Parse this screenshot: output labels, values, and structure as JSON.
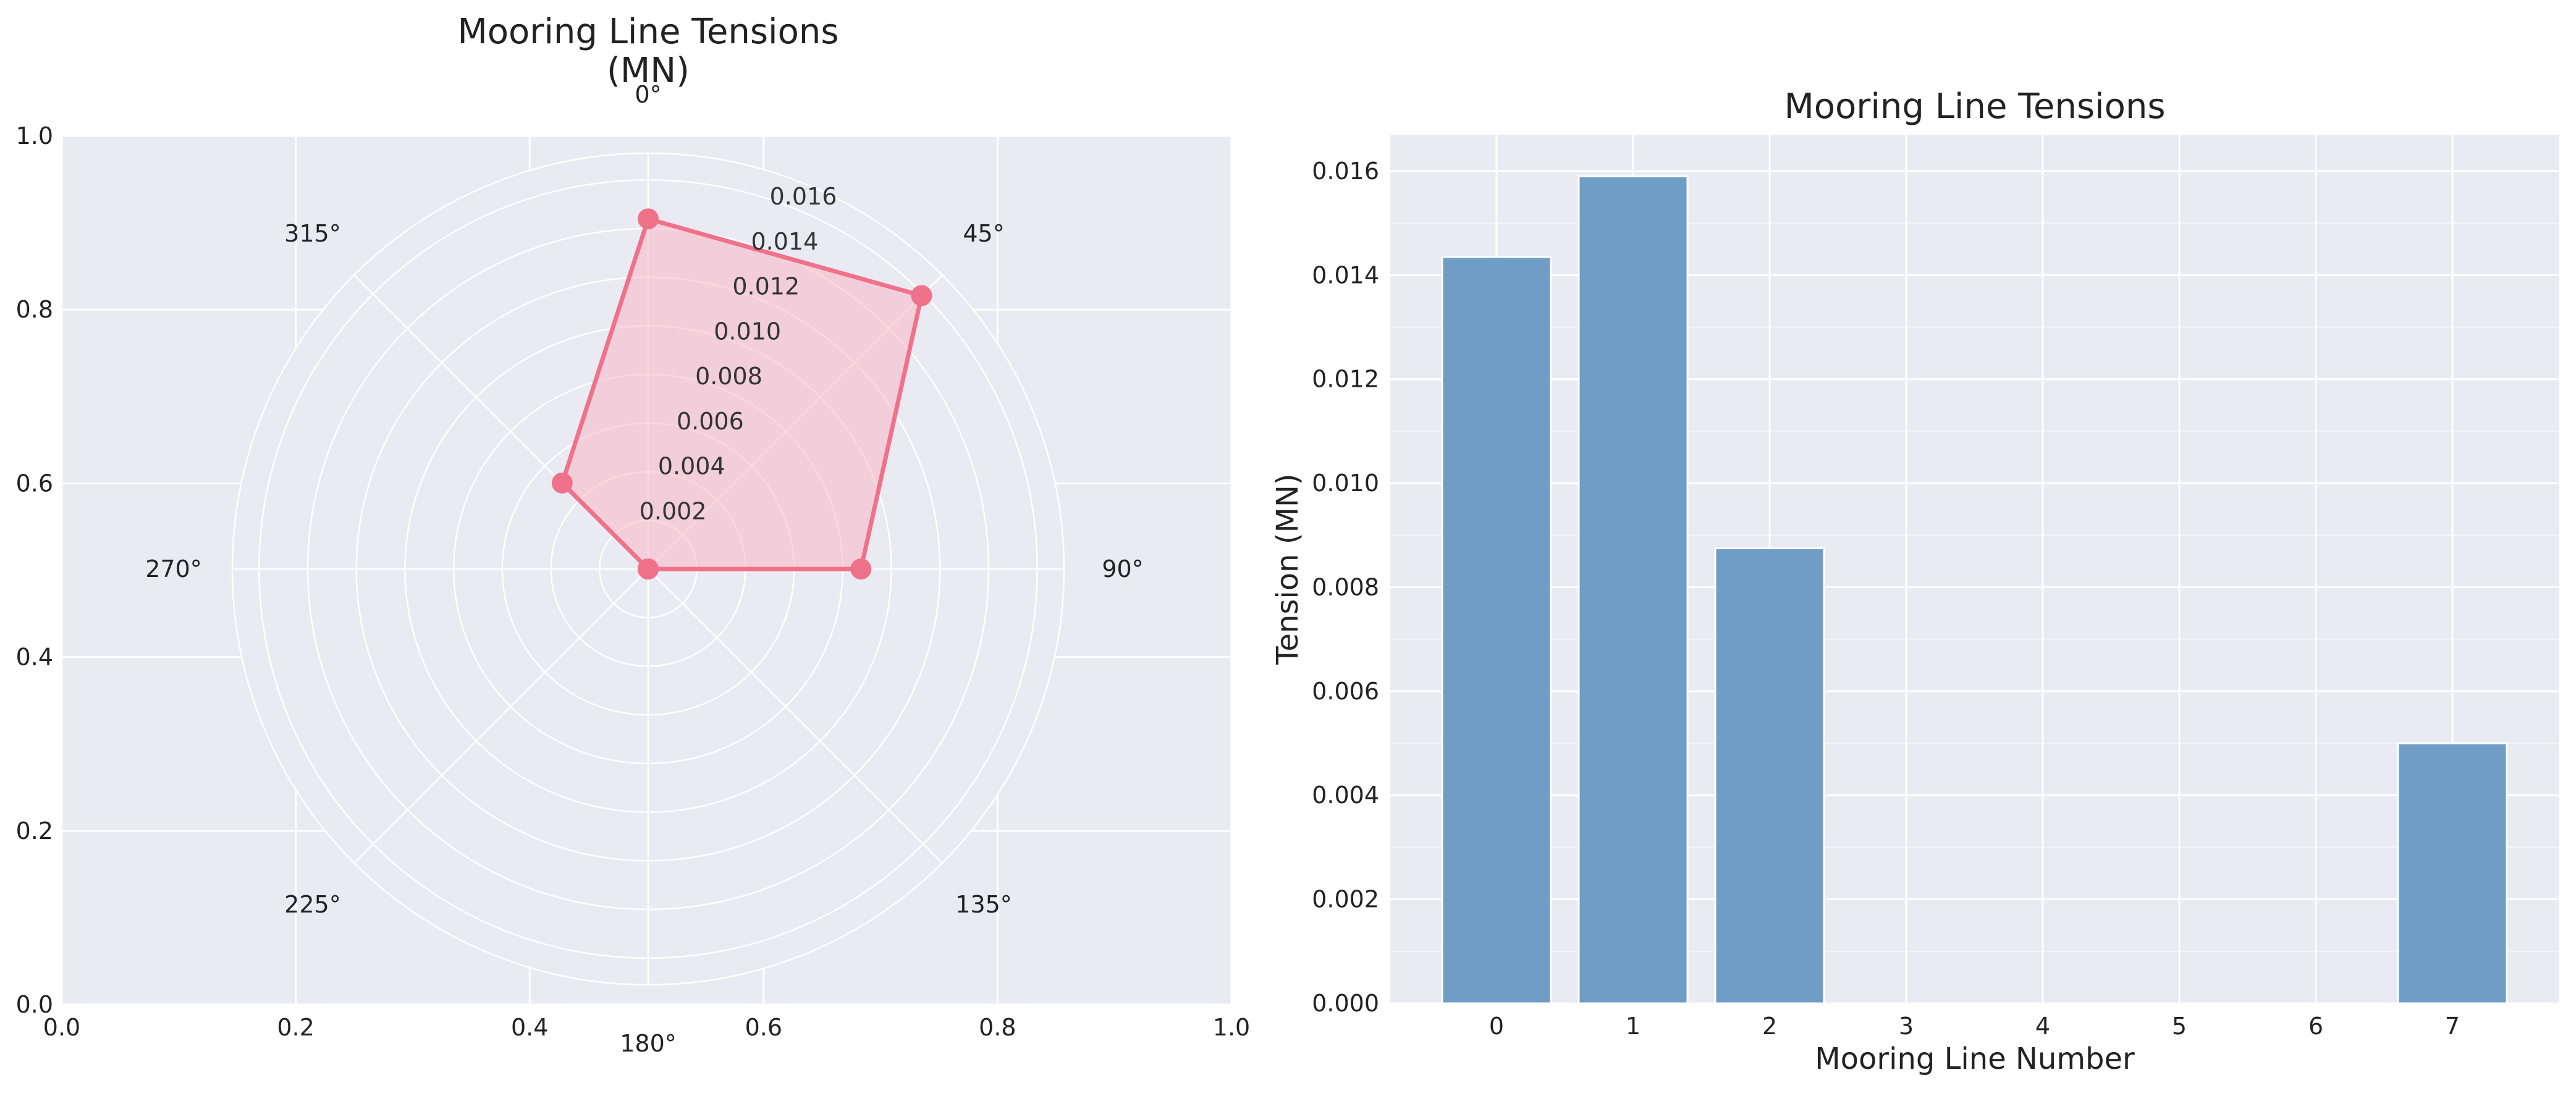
{
  "chart_data": [
    {
      "type": "radar",
      "title_line1": "Mooring Line Tensions",
      "title_line2": "(MN)",
      "angles_deg": [
        0,
        45,
        90,
        135,
        180,
        225,
        270,
        315
      ],
      "angle_labels": [
        "0°",
        "45°",
        "90°",
        "135°",
        "180°",
        "225°",
        "270°",
        "315°"
      ],
      "values": [
        0.0144,
        0.0159,
        0.00875,
        0.0,
        0.0,
        0.0,
        0.0,
        0.005
      ],
      "radial_ticks": [
        0.002,
        0.004,
        0.006,
        0.008,
        0.01,
        0.012,
        0.014,
        0.016
      ],
      "radial_tick_labels": [
        "0.002",
        "0.004",
        "0.006",
        "0.008",
        "0.010",
        "0.012",
        "0.014",
        "0.016"
      ],
      "rmax": 0.0171,
      "frame_ticks": [
        "0.0",
        "0.2",
        "0.4",
        "0.6",
        "0.8",
        "1.0"
      ],
      "line_color": "#f0718a",
      "fill_color": "#f7b6c6"
    },
    {
      "type": "bar",
      "title": "Mooring Line Tensions",
      "xlabel": "Mooring Line Number",
      "ylabel": "Tension (MN)",
      "categories": [
        "0",
        "1",
        "2",
        "3",
        "4",
        "5",
        "6",
        "7"
      ],
      "values": [
        0.01435,
        0.0159,
        0.00875,
        0.0,
        0.0,
        0.0,
        0.0,
        0.005
      ],
      "ylim": [
        0,
        0.0167
      ],
      "yticks": [
        0.0,
        0.002,
        0.004,
        0.006,
        0.008,
        0.01,
        0.012,
        0.014,
        0.016
      ],
      "ytick_labels": [
        "0.000",
        "0.002",
        "0.004",
        "0.006",
        "0.008",
        "0.010",
        "0.012",
        "0.014",
        "0.016"
      ],
      "bar_color": "#6f9dc5",
      "grid": true
    }
  ]
}
